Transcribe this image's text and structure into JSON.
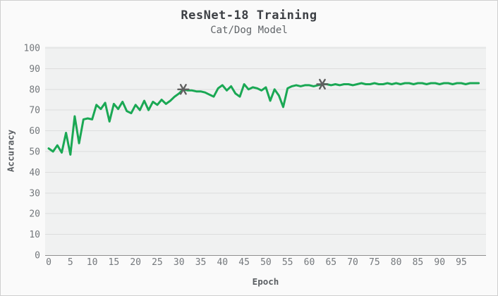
{
  "header": {
    "title": "ResNet-18 Training",
    "subtitle": "Cat/Dog Model"
  },
  "chart_data": {
    "type": "line",
    "title": "ResNet-18 Training",
    "subtitle": "Cat/Dog Model",
    "xlabel": "Epoch",
    "ylabel": "Accuracy",
    "xlim": [
      0,
      99
    ],
    "ylim": [
      0,
      100
    ],
    "x_ticks": [
      0,
      5,
      10,
      15,
      20,
      25,
      30,
      35,
      40,
      45,
      50,
      55,
      60,
      65,
      70,
      75,
      80,
      85,
      90,
      95
    ],
    "y_ticks": [
      0,
      10,
      20,
      30,
      40,
      50,
      60,
      70,
      80,
      90,
      100
    ],
    "grid": "horizontal-only",
    "legend": "none",
    "series": [
      {
        "name": "accuracy",
        "color": "#1aa854",
        "x_start": 0,
        "x_step": 1,
        "values": [
          51.5,
          50,
          53,
          49.5,
          59,
          48.5,
          67,
          54,
          65.5,
          66,
          65.5,
          72.5,
          70.5,
          73.5,
          64.5,
          73,
          70.5,
          74,
          69.5,
          68.5,
          72.5,
          70,
          74.5,
          70,
          74,
          72.5,
          75,
          73,
          74.5,
          76.5,
          78,
          80,
          79.5,
          79.5,
          79,
          79,
          78.5,
          77.5,
          76.5,
          80.5,
          82,
          79.5,
          81.5,
          78,
          76.5,
          82.5,
          80,
          81,
          80.5,
          79.5,
          81,
          74.5,
          80,
          77,
          71.5,
          80.5,
          81.5,
          82,
          81.5,
          82,
          82,
          81.5,
          82,
          82.5,
          82.5,
          82,
          82.5,
          82,
          82.5,
          82.5,
          82,
          82.5,
          83,
          82.5,
          82.5,
          83,
          82.5,
          82.5,
          83,
          82.5,
          83,
          82.5,
          83,
          83,
          82.5,
          83,
          83,
          82.5,
          83,
          83,
          82.5,
          83,
          83,
          82.5,
          83,
          83,
          82.5,
          83,
          83,
          83
        ]
      }
    ],
    "markers": {
      "shape": "asterisk",
      "color": "#5f5f5f",
      "points": [
        {
          "x": 31,
          "y": 80
        },
        {
          "x": 63,
          "y": 82.5
        }
      ]
    },
    "colors": {
      "page_bg": "#fafafa",
      "border": "#cfcfcf",
      "plot_bg": "#f0f1f1",
      "grid": "#dddddd",
      "axis_line": "#909090",
      "title": "#3d4045",
      "subtitle": "#606468",
      "tick_label": "#74787c",
      "axis_title": "#5a5e62",
      "line": "#1aa854",
      "marker": "#5f5f5f"
    }
  }
}
